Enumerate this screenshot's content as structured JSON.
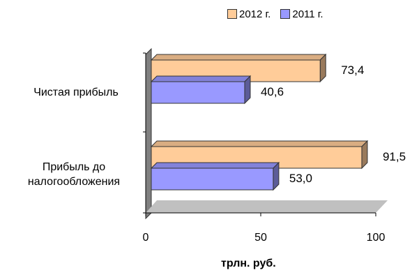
{
  "chart_data": {
    "type": "bar",
    "orientation": "horizontal",
    "three_d": true,
    "categories": [
      "Чистая прибыль",
      "Прибыль до налогообложения"
    ],
    "category_lines": [
      [
        "Чистая прибыль"
      ],
      [
        "Прибыль до",
        "налогообложения"
      ]
    ],
    "series": [
      {
        "name": "2012 г.",
        "values": [
          73.4,
          91.5
        ],
        "value_labels": [
          "73,4",
          "91,5"
        ],
        "color": "#FFCC99"
      },
      {
        "name": "2011 г.",
        "values": [
          40.6,
          53.0
        ],
        "value_labels": [
          "40,6",
          "53,0"
        ],
        "color": "#9999FF"
      }
    ],
    "xlim": [
      0,
      100
    ],
    "xticks": [
      "0",
      "50",
      "100"
    ],
    "xlabel": "трлн. руб.",
    "legend_position": "top",
    "grid": false,
    "wall_color": "#808080",
    "floor_color": "#C0C0C0"
  }
}
